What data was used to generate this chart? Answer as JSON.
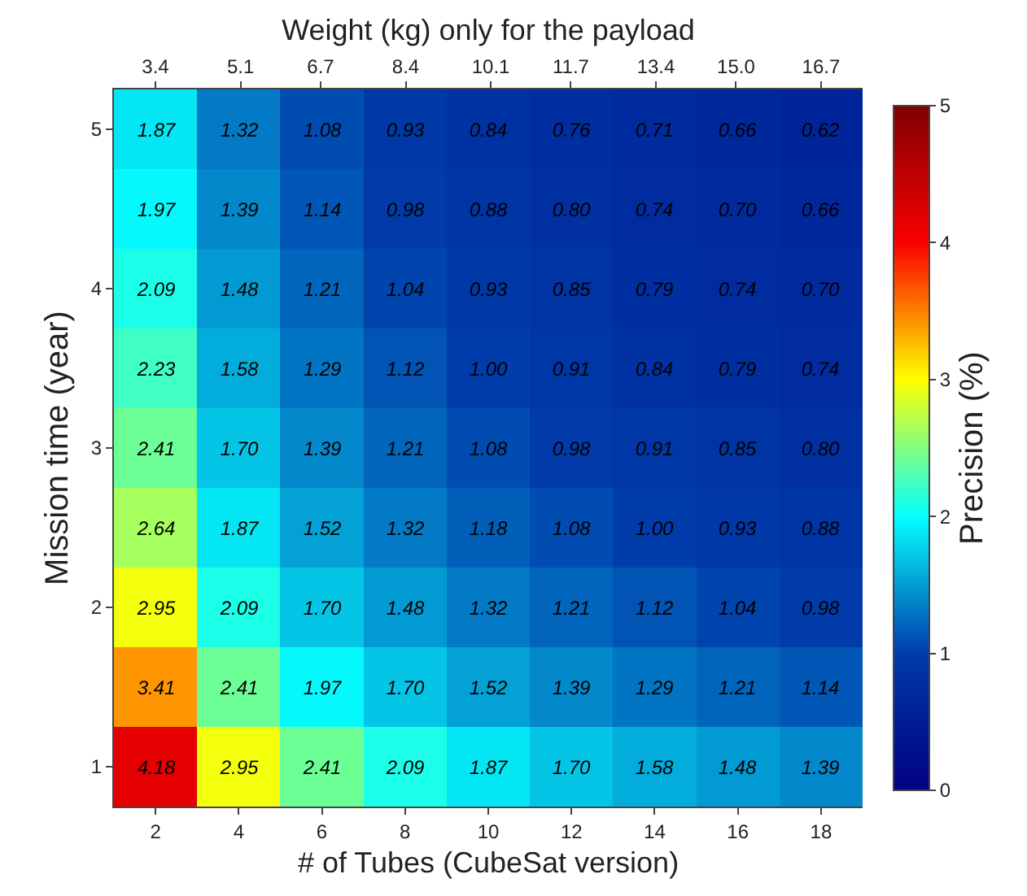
{
  "chart_data": {
    "type": "heatmap",
    "xlabel": "# of Tubes (CubeSat version)",
    "ylabel": "Mission time (year)",
    "x2label": "Weight (kg) only for the payload",
    "clabel": "Precision (%)",
    "x": [
      2,
      4,
      6,
      8,
      10,
      12,
      14,
      16,
      18
    ],
    "xlim": [
      1,
      19
    ],
    "xticks": [
      2,
      4,
      6,
      8,
      10,
      12,
      14,
      16,
      18
    ],
    "x2lim": [
      2.57,
      17.53
    ],
    "x2ticks": [
      3.4,
      5.1,
      6.7,
      8.4,
      10.1,
      11.7,
      13.4,
      {
        "value": 15.0,
        "label": "15.0"
      },
      16.7
    ],
    "y_categories": [
      "5",
      null,
      "4",
      null,
      "3",
      null,
      "2",
      null,
      "1"
    ],
    "cells": [
      [
        1.87,
        1.32,
        1.08,
        0.93,
        0.84,
        0.76,
        0.71,
        0.66,
        0.62
      ],
      [
        1.97,
        1.39,
        1.14,
        0.98,
        0.88,
        0.8,
        0.74,
        0.7,
        0.66
      ],
      [
        2.09,
        1.48,
        1.21,
        1.04,
        0.93,
        0.85,
        0.79,
        0.74,
        0.7
      ],
      [
        2.23,
        1.58,
        1.29,
        1.12,
        1.0,
        0.91,
        0.84,
        0.79,
        0.74
      ],
      [
        2.41,
        1.7,
        1.39,
        1.21,
        1.08,
        0.98,
        0.91,
        0.85,
        0.8
      ],
      [
        2.64,
        1.87,
        1.52,
        1.32,
        1.18,
        1.08,
        1.0,
        0.93,
        0.88
      ],
      [
        2.95,
        2.09,
        1.7,
        1.48,
        1.32,
        1.21,
        1.12,
        1.04,
        0.98
      ],
      [
        3.41,
        2.41,
        1.97,
        1.7,
        1.52,
        1.39,
        1.29,
        1.21,
        1.14
      ],
      [
        4.18,
        2.95,
        2.41,
        2.09,
        1.87,
        1.7,
        1.58,
        1.48,
        1.39
      ]
    ],
    "cell_labels": [
      [
        "1.87",
        "1.32",
        "1.08",
        "0.93",
        "0.84",
        "0.76",
        "0.71",
        "0.66",
        "0.62"
      ],
      [
        "1.97",
        "1.39",
        "1.14",
        "0.98",
        "0.88",
        "0.80",
        "0.74",
        "0.70",
        "0.66"
      ],
      [
        "2.09",
        "1.48",
        "1.21",
        "1.04",
        "0.93",
        "0.85",
        "0.79",
        "0.74",
        "0.70"
      ],
      [
        "2.23",
        "1.58",
        "1.29",
        "1.12",
        "1.00",
        "0.91",
        "0.84",
        "0.79",
        "0.74"
      ],
      [
        "2.41",
        "1.70",
        "1.39",
        "1.21",
        "1.08",
        "0.98",
        "0.91",
        "0.85",
        "0.80"
      ],
      [
        "2.64",
        "1.87",
        "1.52",
        "1.32",
        "1.18",
        "1.08",
        "1.00",
        "0.93",
        "0.88"
      ],
      [
        "2.95",
        "2.09",
        "1.70",
        "1.48",
        "1.32",
        "1.21",
        "1.12",
        "1.04",
        "0.98"
      ],
      [
        "3.41",
        "2.41",
        "1.97",
        "1.70",
        "1.52",
        "1.39",
        "1.29",
        "1.21",
        "1.14"
      ],
      [
        "4.18",
        "2.95",
        "2.41",
        "2.09",
        "1.87",
        "1.70",
        "1.58",
        "1.48",
        "1.39"
      ]
    ],
    "clim": [
      0,
      5
    ],
    "cticks": [
      0,
      1,
      2,
      3,
      4,
      5
    ]
  }
}
